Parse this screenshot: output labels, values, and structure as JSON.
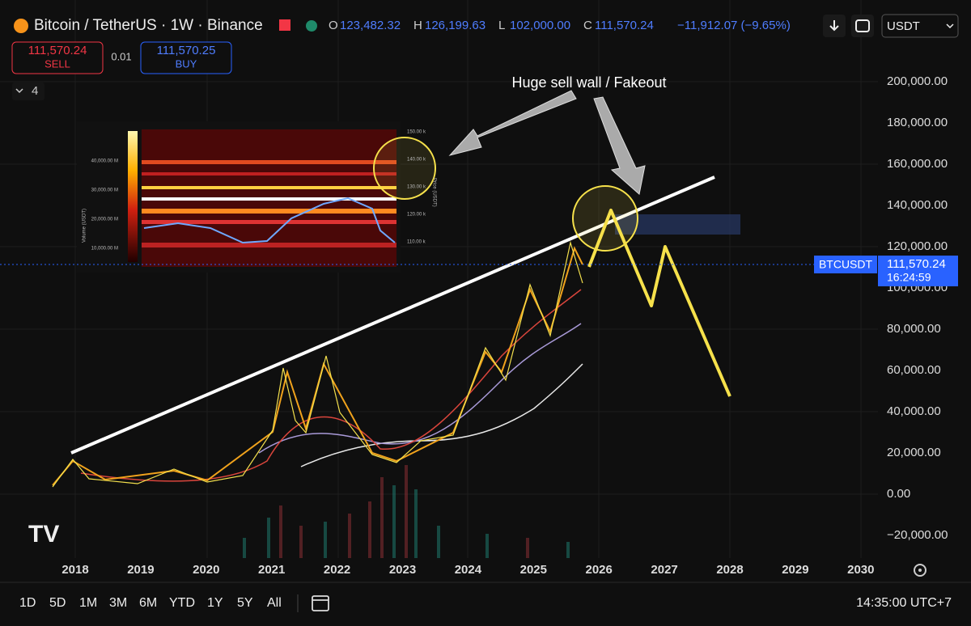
{
  "header": {
    "symbol": "Bitcoin / TetherUS · 1W · Binance",
    "ohlc": [
      {
        "key": "O",
        "value": "123,482.32"
      },
      {
        "key": "H",
        "value": "126,199.63"
      },
      {
        "key": "L",
        "value": "102,000.00"
      },
      {
        "key": "C",
        "value": "111,570.24"
      }
    ],
    "change": "−11,912.07 (−9.65%)",
    "currency": "USDT"
  },
  "trade": {
    "sell_price": "111,570.24",
    "sell_label": "SELL",
    "spread": "0.01",
    "buy_price": "111,570.25",
    "buy_label": "BUY"
  },
  "indicators": {
    "count": "4"
  },
  "annotation": "Huge sell wall / Fakeout",
  "inset": {
    "volume_ticks": [
      "40,000.00 M",
      "30,000.00 M",
      "20,000.00 M",
      "10,000.00 M"
    ],
    "price_ticks": [
      "150.00 k",
      "140.00 k",
      "130.00 k",
      "120.00 k",
      "110.00 k"
    ],
    "volume_axis": "Volume (USDT)",
    "price_axis": "Price (USDT)"
  },
  "y_axis": [
    "200,000.00",
    "180,000.00",
    "160,000.00",
    "140,000.00",
    "120,000.00",
    "100,000.00",
    "80,000.00",
    "60,000.00",
    "40,000.00",
    "20,000.00",
    "0.00",
    "−20,000.00"
  ],
  "price_tag": {
    "symbol": "BTCUSDT",
    "price": "111,570.24",
    "countdown": "16:24:59"
  },
  "x_axis": [
    "2018",
    "2019",
    "2020",
    "2021",
    "2022",
    "2023",
    "2024",
    "2025",
    "2026",
    "2027",
    "2028",
    "2029",
    "2030"
  ],
  "timeframes": [
    "1D",
    "5D",
    "1M",
    "3M",
    "6M",
    "YTD",
    "1Y",
    "5Y",
    "All"
  ],
  "clock": "14:35:00 UTC+7"
}
